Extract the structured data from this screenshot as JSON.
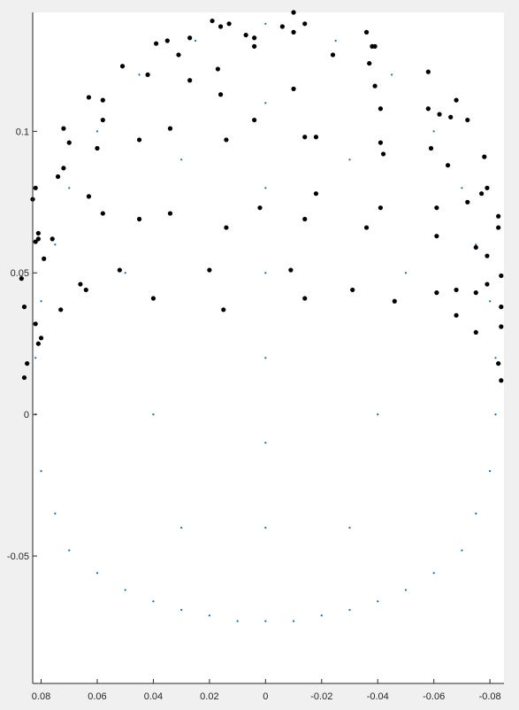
{
  "chart_data": {
    "type": "scatter",
    "title": "",
    "xlabel": "",
    "ylabel": "",
    "xlim": [
      0.083,
      -0.085
    ],
    "ylim": [
      -0.095,
      0.142
    ],
    "x_reversed": true,
    "grid": false,
    "x_ticks": [
      {
        "value": 0.08,
        "label": "0.08"
      },
      {
        "value": 0.06,
        "label": "0.06"
      },
      {
        "value": 0.04,
        "label": "0.04"
      },
      {
        "value": 0.02,
        "label": "0.02"
      },
      {
        "value": 0.0,
        "label": "0"
      },
      {
        "value": -0.02,
        "label": "-0.02"
      },
      {
        "value": -0.04,
        "label": "-0.04"
      },
      {
        "value": -0.06,
        "label": "-0.06"
      },
      {
        "value": -0.08,
        "label": "-0.08"
      }
    ],
    "y_ticks": [
      {
        "value": 0.1,
        "label": "0.1"
      },
      {
        "value": 0.05,
        "label": "0.05"
      },
      {
        "value": 0.0,
        "label": "0"
      },
      {
        "value": -0.05,
        "label": "-0.05"
      }
    ],
    "series": [
      {
        "color": "#0072bd",
        "marker": "point",
        "points": [
          [
            0.0,
            -0.073
          ],
          [
            0.01,
            -0.073
          ],
          [
            -0.01,
            -0.073
          ],
          [
            0.02,
            -0.071
          ],
          [
            -0.02,
            -0.071
          ],
          [
            0.03,
            -0.069
          ],
          [
            -0.03,
            -0.069
          ],
          [
            0.04,
            -0.066
          ],
          [
            -0.04,
            -0.066
          ],
          [
            0.05,
            -0.062
          ],
          [
            -0.05,
            -0.062
          ],
          [
            0.06,
            -0.056
          ],
          [
            -0.06,
            -0.056
          ],
          [
            0.07,
            -0.048
          ],
          [
            -0.07,
            -0.048
          ],
          [
            0.075,
            -0.035
          ],
          [
            -0.075,
            -0.035
          ],
          [
            0.08,
            -0.02
          ],
          [
            -0.08,
            -0.02
          ],
          [
            0.082,
            0.0
          ],
          [
            -0.082,
            0.0
          ],
          [
            0.082,
            0.02
          ],
          [
            -0.082,
            0.02
          ],
          [
            0.08,
            0.04
          ],
          [
            -0.08,
            0.04
          ],
          [
            0.075,
            0.06
          ],
          [
            -0.075,
            0.06
          ],
          [
            0.07,
            0.08
          ],
          [
            -0.07,
            0.08
          ],
          [
            0.06,
            0.1
          ],
          [
            -0.06,
            0.1
          ],
          [
            0.045,
            0.12
          ],
          [
            -0.045,
            0.12
          ],
          [
            0.025,
            0.132
          ],
          [
            -0.025,
            0.132
          ],
          [
            0.0,
            0.138
          ],
          [
            0.0,
            0.11
          ],
          [
            0.0,
            0.08
          ],
          [
            0.0,
            0.05
          ],
          [
            0.0,
            0.02
          ],
          [
            0.0,
            -0.01
          ],
          [
            0.0,
            -0.04
          ],
          [
            0.03,
            0.09
          ],
          [
            -0.03,
            0.09
          ],
          [
            0.05,
            0.05
          ],
          [
            -0.05,
            0.05
          ],
          [
            0.04,
            0.0
          ],
          [
            -0.04,
            0.0
          ],
          [
            0.03,
            -0.04
          ],
          [
            -0.03,
            -0.04
          ]
        ]
      },
      {
        "color": "#000000",
        "marker": "dot",
        "points": [
          [
            -0.01,
            0.142
          ],
          [
            0.019,
            0.139
          ],
          [
            0.016,
            0.137
          ],
          [
            0.013,
            0.138
          ],
          [
            -0.006,
            0.137
          ],
          [
            -0.014,
            0.138
          ],
          [
            -0.01,
            0.135
          ],
          [
            -0.036,
            0.135
          ],
          [
            0.035,
            0.132
          ],
          [
            0.027,
            0.133
          ],
          [
            0.007,
            0.134
          ],
          [
            0.004,
            0.133
          ],
          [
            0.004,
            0.13
          ],
          [
            0.039,
            0.131
          ],
          [
            -0.038,
            0.13
          ],
          [
            -0.039,
            0.13
          ],
          [
            0.031,
            0.127
          ],
          [
            -0.024,
            0.127
          ],
          [
            -0.037,
            0.124
          ],
          [
            0.051,
            0.123
          ],
          [
            0.017,
            0.122
          ],
          [
            -0.058,
            0.121
          ],
          [
            0.042,
            0.12
          ],
          [
            0.027,
            0.118
          ],
          [
            -0.039,
            0.116
          ],
          [
            -0.01,
            0.115
          ],
          [
            0.016,
            0.113
          ],
          [
            0.063,
            0.112
          ],
          [
            -0.068,
            0.111
          ],
          [
            0.058,
            0.111
          ],
          [
            -0.058,
            0.108
          ],
          [
            -0.041,
            0.108
          ],
          [
            -0.062,
            0.106
          ],
          [
            0.058,
            0.104
          ],
          [
            -0.066,
            0.105
          ],
          [
            0.004,
            0.104
          ],
          [
            -0.072,
            0.104
          ],
          [
            0.072,
            0.101
          ],
          [
            0.034,
            0.101
          ],
          [
            -0.014,
            0.098
          ],
          [
            -0.018,
            0.098
          ],
          [
            0.045,
            0.097
          ],
          [
            0.014,
            0.097
          ],
          [
            -0.041,
            0.096
          ],
          [
            0.07,
            0.096
          ],
          [
            0.06,
            0.094
          ],
          [
            -0.059,
            0.094
          ],
          [
            -0.042,
            0.092
          ],
          [
            -0.078,
            0.091
          ],
          [
            -0.065,
            0.088
          ],
          [
            0.072,
            0.087
          ],
          [
            0.074,
            0.084
          ],
          [
            -0.079,
            0.08
          ],
          [
            0.082,
            0.08
          ],
          [
            -0.077,
            0.078
          ],
          [
            0.063,
            0.077
          ],
          [
            -0.072,
            0.075
          ],
          [
            0.083,
            0.076
          ],
          [
            -0.018,
            0.078
          ],
          [
            -0.041,
            0.073
          ],
          [
            0.002,
            0.073
          ],
          [
            -0.061,
            0.073
          ],
          [
            0.034,
            0.071
          ],
          [
            0.058,
            0.071
          ],
          [
            -0.083,
            0.07
          ],
          [
            0.045,
            0.069
          ],
          [
            -0.014,
            0.069
          ],
          [
            -0.083,
            0.066
          ],
          [
            0.014,
            0.066
          ],
          [
            -0.036,
            0.066
          ],
          [
            0.081,
            0.064
          ],
          [
            -0.061,
            0.063
          ],
          [
            0.081,
            0.062
          ],
          [
            0.076,
            0.062
          ],
          [
            0.082,
            0.061
          ],
          [
            -0.075,
            0.059
          ],
          [
            0.079,
            0.055
          ],
          [
            -0.079,
            0.056
          ],
          [
            0.052,
            0.051
          ],
          [
            0.02,
            0.051
          ],
          [
            -0.009,
            0.051
          ],
          [
            0.087,
            0.048
          ],
          [
            -0.084,
            0.049
          ],
          [
            -0.079,
            0.046
          ],
          [
            0.066,
            0.046
          ],
          [
            0.064,
            0.044
          ],
          [
            -0.068,
            0.044
          ],
          [
            -0.031,
            0.044
          ],
          [
            -0.061,
            0.043
          ],
          [
            -0.075,
            0.043
          ],
          [
            0.04,
            0.041
          ],
          [
            -0.014,
            0.041
          ],
          [
            -0.046,
            0.04
          ],
          [
            0.086,
            0.038
          ],
          [
            -0.084,
            0.038
          ],
          [
            0.015,
            0.037
          ],
          [
            0.073,
            0.037
          ],
          [
            -0.068,
            0.035
          ],
          [
            0.082,
            0.032
          ],
          [
            -0.084,
            0.031
          ],
          [
            -0.075,
            0.029
          ],
          [
            0.08,
            0.027
          ],
          [
            0.081,
            0.025
          ],
          [
            0.085,
            0.018
          ],
          [
            -0.083,
            0.018
          ],
          [
            -0.084,
            0.012
          ],
          [
            0.086,
            0.013
          ]
        ]
      }
    ]
  }
}
